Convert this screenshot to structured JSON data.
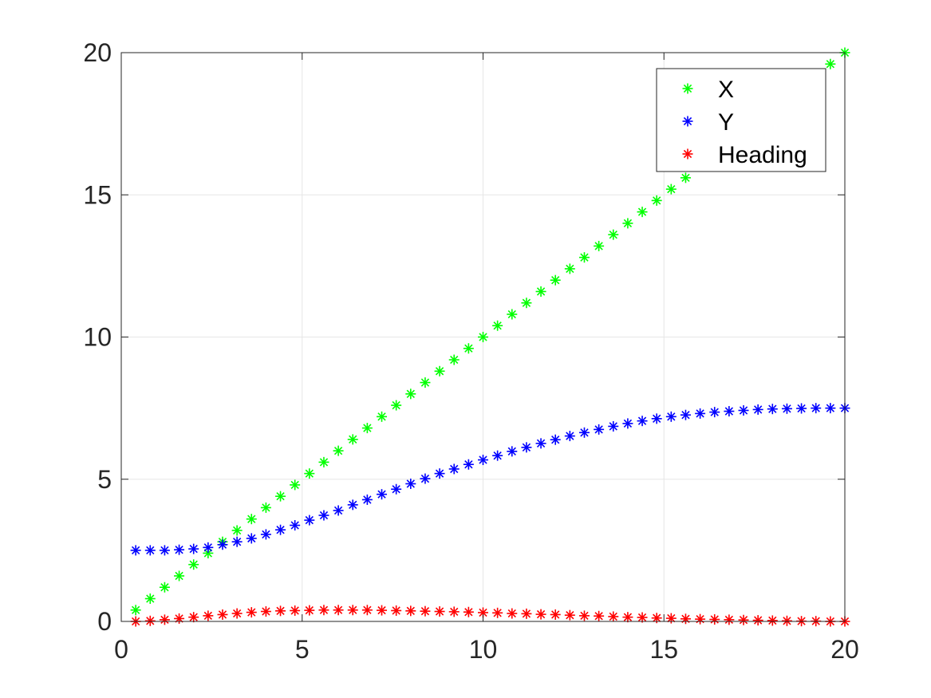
{
  "chart_data": {
    "type": "scatter",
    "marker": "asterisk",
    "grid": true,
    "legend_position": "top-right",
    "xlim": [
      0,
      20
    ],
    "ylim": [
      0,
      20
    ],
    "xticks": [
      0,
      5,
      10,
      15,
      20
    ],
    "yticks": [
      0,
      5,
      10,
      15,
      20
    ],
    "xtick_labels": [
      "0",
      "5",
      "10",
      "15",
      "20"
    ],
    "ytick_labels": [
      "0",
      "5",
      "10",
      "15",
      "20"
    ],
    "x": [
      0.4,
      0.8,
      1.2,
      1.6,
      2.0,
      2.4,
      2.8,
      3.2,
      3.6,
      4.0,
      4.4,
      4.8,
      5.2,
      5.6,
      6.0,
      6.4,
      6.8,
      7.2,
      7.6,
      8.0,
      8.4,
      8.8,
      9.2,
      9.6,
      10.0,
      10.4,
      10.8,
      11.2,
      11.6,
      12.0,
      12.4,
      12.8,
      13.2,
      13.6,
      14.0,
      14.4,
      14.8,
      15.2,
      15.6,
      16.0,
      16.4,
      16.8,
      17.2,
      17.6,
      18.0,
      18.4,
      18.8,
      19.2,
      19.6,
      20.0
    ],
    "series": [
      {
        "name": "X",
        "color": "#00ff00",
        "x": [
          0.4,
          0.8,
          1.2,
          1.6,
          2.0,
          2.4,
          2.8,
          3.2,
          3.6,
          4.0,
          4.4,
          4.8,
          5.2,
          5.6,
          6.0,
          6.4,
          6.8,
          7.2,
          7.6,
          8.0,
          8.4,
          8.8,
          9.2,
          9.6,
          10.0,
          10.4,
          10.8,
          11.2,
          11.6,
          12.0,
          12.4,
          12.8,
          13.2,
          13.6,
          14.0,
          14.4,
          14.8,
          15.2,
          15.6,
          19.6,
          20.0
        ],
        "values": [
          0.4,
          0.8,
          1.2,
          1.6,
          2.0,
          2.4,
          2.8,
          3.2,
          3.6,
          4.0,
          4.4,
          4.8,
          5.2,
          5.6,
          6.0,
          6.4,
          6.8,
          7.2,
          7.6,
          8.0,
          8.4,
          8.8,
          9.2,
          9.6,
          10.0,
          10.4,
          10.8,
          11.2,
          11.6,
          12.0,
          12.4,
          12.8,
          13.2,
          13.6,
          14.0,
          14.4,
          14.8,
          15.2,
          15.6,
          19.6,
          20.0
        ]
      },
      {
        "name": "Y",
        "color": "#0000ff",
        "values": [
          2.5,
          2.5,
          2.5,
          2.52,
          2.55,
          2.6,
          2.7,
          2.8,
          2.92,
          3.06,
          3.22,
          3.38,
          3.56,
          3.73,
          3.9,
          4.1,
          4.28,
          4.47,
          4.65,
          4.84,
          5.02,
          5.2,
          5.36,
          5.52,
          5.68,
          5.83,
          5.98,
          6.12,
          6.26,
          6.39,
          6.52,
          6.64,
          6.75,
          6.86,
          6.96,
          7.05,
          7.13,
          7.2,
          7.26,
          7.31,
          7.36,
          7.39,
          7.42,
          7.45,
          7.47,
          7.48,
          7.49,
          7.5,
          7.5,
          7.5
        ]
      },
      {
        "name": "Heading",
        "color": "#ff0000",
        "values": [
          0.0,
          0.02,
          0.06,
          0.1,
          0.15,
          0.2,
          0.24,
          0.28,
          0.32,
          0.35,
          0.37,
          0.38,
          0.39,
          0.4,
          0.4,
          0.4,
          0.4,
          0.39,
          0.38,
          0.37,
          0.36,
          0.35,
          0.34,
          0.33,
          0.31,
          0.3,
          0.28,
          0.27,
          0.25,
          0.24,
          0.22,
          0.2,
          0.19,
          0.17,
          0.15,
          0.14,
          0.12,
          0.11,
          0.09,
          0.08,
          0.07,
          0.06,
          0.05,
          0.04,
          0.03,
          0.02,
          0.01,
          0.01,
          0.0,
          0.0
        ]
      }
    ]
  }
}
